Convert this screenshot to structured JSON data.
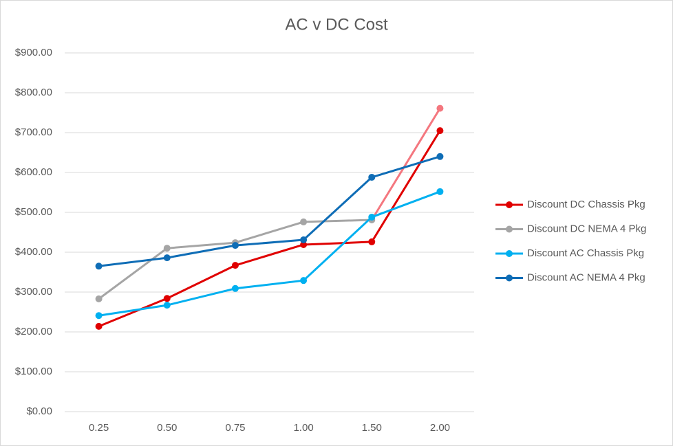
{
  "chart_data": {
    "type": "line",
    "title": "AC v DC Cost",
    "categories": [
      "0.25",
      "0.50",
      "0.75",
      "1.00",
      "1.50",
      "2.00"
    ],
    "series": [
      {
        "name": "Discount DC Chassis Pkg",
        "color": "#e00000",
        "values": [
          214,
          284,
          367,
          419,
          426,
          705
        ]
      },
      {
        "name": "Discount DC NEMA 4 Pkg",
        "color": "#a5a5a5",
        "last_segment_color": "#f4777f",
        "values": [
          283,
          410,
          424,
          476,
          481,
          761
        ]
      },
      {
        "name": "Discount AC Chassis Pkg",
        "color": "#00b0f0",
        "values": [
          241,
          267,
          309,
          329,
          488,
          552
        ]
      },
      {
        "name": "Discount AC NEMA 4 Pkg",
        "color": "#0f6db6",
        "values": [
          365,
          386,
          417,
          431,
          588,
          640
        ]
      }
    ],
    "ylim": [
      0,
      900
    ],
    "yticks": [
      {
        "value": 0,
        "label": "$0.00"
      },
      {
        "value": 100,
        "label": "$100.00"
      },
      {
        "value": 200,
        "label": "$200.00"
      },
      {
        "value": 300,
        "label": "$300.00"
      },
      {
        "value": 400,
        "label": "$400.00"
      },
      {
        "value": 500,
        "label": "$500.00"
      },
      {
        "value": 600,
        "label": "$600.00"
      },
      {
        "value": 700,
        "label": "$700.00"
      },
      {
        "value": 800,
        "label": "$800.00"
      },
      {
        "value": 900,
        "label": "$900.00"
      }
    ],
    "grid": true,
    "legend": "right"
  }
}
